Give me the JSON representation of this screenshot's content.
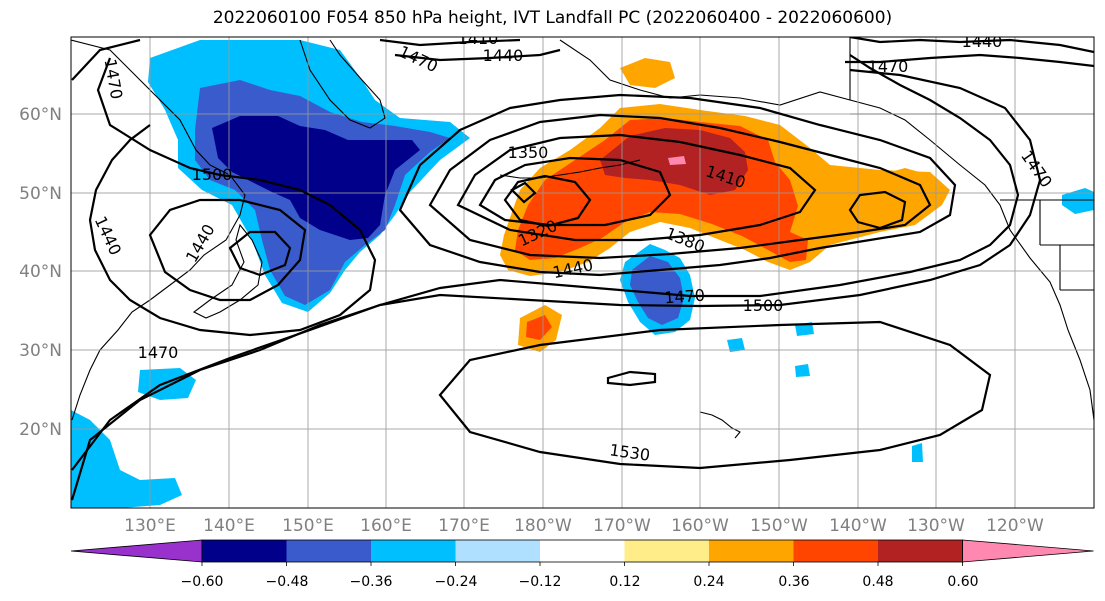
{
  "title": "2022060100 F054 850 hPa height, IVT Landfall PC (2022060400 - 2022060600)",
  "colors": {
    "levels": [
      "#9932CC",
      "#00008B",
      "#3A5BCC",
      "#00BFFF",
      "#B0E0FF",
      "#FFFFFF",
      "#FFED8A",
      "#FFA500",
      "#FF4500",
      "#B22222",
      "#FF88B0"
    ]
  },
  "lat_ticks": [
    "60°N",
    "50°N",
    "40°N",
    "30°N",
    "20°N"
  ],
  "lon_ticks": [
    "130°E",
    "140°E",
    "150°E",
    "160°E",
    "170°E",
    "180°W",
    "170°W",
    "160°W",
    "150°W",
    "140°W",
    "130°W",
    "120°W"
  ],
  "colorbar_ticks": [
    "−0.60",
    "−0.48",
    "−0.36",
    "−0.24",
    "−0.12",
    "0.12",
    "0.24",
    "0.36",
    "0.48",
    "0.60"
  ],
  "contour_labels": [
    "1410",
    "1440",
    "1470",
    "1470",
    "1440",
    "1470",
    "1500",
    "1440",
    "1440",
    "1470",
    "1350",
    "1320",
    "1440",
    "1410",
    "1380",
    "1470",
    "1500",
    "1470",
    "1530"
  ],
  "chart_data": {
    "type": "map",
    "title": "2022060100 F054 850 hPa height, IVT Landfall PC (2022060400 - 2022060600)",
    "lon_range": [
      120,
      250
    ],
    "lat_range": [
      10,
      70
    ],
    "contour_variable": "850 hPa height",
    "contour_interval": 30,
    "contour_levels_labeled": [
      1320,
      1350,
      1380,
      1410,
      1440,
      1470,
      1500,
      1530
    ],
    "fill_variable": "IVT Landfall PC",
    "fill_levels": [
      -0.6,
      -0.48,
      -0.36,
      -0.24,
      -0.12,
      0.12,
      0.24,
      0.36,
      0.48,
      0.6
    ],
    "colorbar_extend": "both",
    "low_center_approx": {
      "lat": 49,
      "lon": -178
    },
    "high_center_approx": {
      "lat": 25,
      "lon": -148
    }
  }
}
